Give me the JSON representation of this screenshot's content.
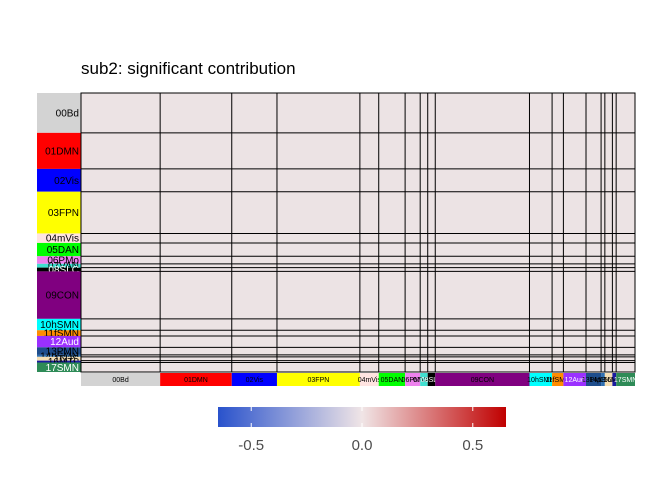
{
  "chart_data": {
    "type": "heatmap",
    "title": "sub2: significant contribution",
    "networks": [
      {
        "label": "00Bd",
        "color": "#d3d3d3",
        "size": 21,
        "text": "#000000"
      },
      {
        "label": "01DMN",
        "color": "#ff0000",
        "size": 19,
        "text": "#000000"
      },
      {
        "label": "02Vis",
        "color": "#0000ff",
        "size": 12,
        "text": "#000000"
      },
      {
        "label": "03FPN",
        "color": "#ffff00",
        "size": 22,
        "text": "#000000"
      },
      {
        "label": "04mVis",
        "color": "#ffe4e1",
        "size": 5,
        "text": "#000000"
      },
      {
        "label": "05DAN",
        "color": "#00ff00",
        "size": 7,
        "text": "#000000"
      },
      {
        "label": "06PMo",
        "color": "#ee82ee",
        "size": 4,
        "text": "#000000"
      },
      {
        "label": "07VAN",
        "color": "#40e0d0",
        "size": 2,
        "text": "#000000"
      },
      {
        "label": "08SLC",
        "color": "#000000",
        "size": 2,
        "text": "#ffffff"
      },
      {
        "label": "09CON",
        "color": "#800080",
        "size": 25,
        "text": "#000000"
      },
      {
        "label": "10hSMN",
        "color": "#00ffff",
        "size": 6,
        "text": "#000000"
      },
      {
        "label": "11fSMN",
        "color": "#ff8c00",
        "size": 3,
        "text": "#000000"
      },
      {
        "label": "12Aud",
        "color": "#9b30ff",
        "size": 6,
        "text": "#ffffff"
      },
      {
        "label": "13PMN",
        "color": "#1e4d8c",
        "size": 4,
        "text": "#000000"
      },
      {
        "label": "14pSMN",
        "color": "#2f6fb0",
        "size": 1,
        "text": "#000000"
      },
      {
        "label": "15US",
        "color": "#f5deb3",
        "size": 2,
        "text": "#000000"
      },
      {
        "label": "16MTL",
        "color": "#1a1aa0",
        "size": 1,
        "text": "#000000"
      },
      {
        "label": "17SMN",
        "color": "#2e8b57",
        "size": 5,
        "text": "#ffffff"
      }
    ],
    "cell_value": 0,
    "colorbar": {
      "ticks": [
        "-0.5",
        "0.0",
        "0.5"
      ],
      "tick_values": [
        -0.5,
        0.0,
        0.5
      ],
      "range": [
        -0.65,
        0.65
      ],
      "low_color": "#2952cc",
      "mid_color": "#f0e5e6",
      "high_color": "#c00000"
    },
    "background_cell_color": "#ece3e4"
  }
}
